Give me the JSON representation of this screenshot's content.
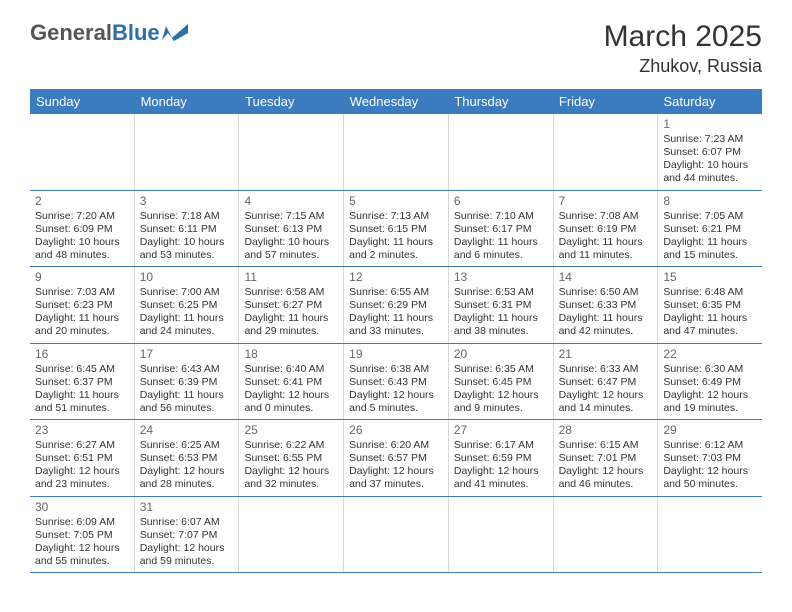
{
  "logo": {
    "textA": "General",
    "textB": "Blue"
  },
  "header": {
    "month_title": "March 2025",
    "location": "Zhukov, Russia"
  },
  "colors": {
    "header_bg": "#3a7cbf",
    "row_border": "#3a7cbf",
    "cell_border": "#d8d8d8",
    "text": "#333333",
    "background": "#ffffff"
  },
  "weekdays": [
    "Sunday",
    "Monday",
    "Tuesday",
    "Wednesday",
    "Thursday",
    "Friday",
    "Saturday"
  ],
  "weeks": [
    [
      null,
      null,
      null,
      null,
      null,
      null,
      {
        "n": "1",
        "sr": "Sunrise: 7:23 AM",
        "ss": "Sunset: 6:07 PM",
        "dl": "Daylight: 10 hours and 44 minutes."
      }
    ],
    [
      {
        "n": "2",
        "sr": "Sunrise: 7:20 AM",
        "ss": "Sunset: 6:09 PM",
        "dl": "Daylight: 10 hours and 48 minutes."
      },
      {
        "n": "3",
        "sr": "Sunrise: 7:18 AM",
        "ss": "Sunset: 6:11 PM",
        "dl": "Daylight: 10 hours and 53 minutes."
      },
      {
        "n": "4",
        "sr": "Sunrise: 7:15 AM",
        "ss": "Sunset: 6:13 PM",
        "dl": "Daylight: 10 hours and 57 minutes."
      },
      {
        "n": "5",
        "sr": "Sunrise: 7:13 AM",
        "ss": "Sunset: 6:15 PM",
        "dl": "Daylight: 11 hours and 2 minutes."
      },
      {
        "n": "6",
        "sr": "Sunrise: 7:10 AM",
        "ss": "Sunset: 6:17 PM",
        "dl": "Daylight: 11 hours and 6 minutes."
      },
      {
        "n": "7",
        "sr": "Sunrise: 7:08 AM",
        "ss": "Sunset: 6:19 PM",
        "dl": "Daylight: 11 hours and 11 minutes."
      },
      {
        "n": "8",
        "sr": "Sunrise: 7:05 AM",
        "ss": "Sunset: 6:21 PM",
        "dl": "Daylight: 11 hours and 15 minutes."
      }
    ],
    [
      {
        "n": "9",
        "sr": "Sunrise: 7:03 AM",
        "ss": "Sunset: 6:23 PM",
        "dl": "Daylight: 11 hours and 20 minutes."
      },
      {
        "n": "10",
        "sr": "Sunrise: 7:00 AM",
        "ss": "Sunset: 6:25 PM",
        "dl": "Daylight: 11 hours and 24 minutes."
      },
      {
        "n": "11",
        "sr": "Sunrise: 6:58 AM",
        "ss": "Sunset: 6:27 PM",
        "dl": "Daylight: 11 hours and 29 minutes."
      },
      {
        "n": "12",
        "sr": "Sunrise: 6:55 AM",
        "ss": "Sunset: 6:29 PM",
        "dl": "Daylight: 11 hours and 33 minutes."
      },
      {
        "n": "13",
        "sr": "Sunrise: 6:53 AM",
        "ss": "Sunset: 6:31 PM",
        "dl": "Daylight: 11 hours and 38 minutes."
      },
      {
        "n": "14",
        "sr": "Sunrise: 6:50 AM",
        "ss": "Sunset: 6:33 PM",
        "dl": "Daylight: 11 hours and 42 minutes."
      },
      {
        "n": "15",
        "sr": "Sunrise: 6:48 AM",
        "ss": "Sunset: 6:35 PM",
        "dl": "Daylight: 11 hours and 47 minutes."
      }
    ],
    [
      {
        "n": "16",
        "sr": "Sunrise: 6:45 AM",
        "ss": "Sunset: 6:37 PM",
        "dl": "Daylight: 11 hours and 51 minutes."
      },
      {
        "n": "17",
        "sr": "Sunrise: 6:43 AM",
        "ss": "Sunset: 6:39 PM",
        "dl": "Daylight: 11 hours and 56 minutes."
      },
      {
        "n": "18",
        "sr": "Sunrise: 6:40 AM",
        "ss": "Sunset: 6:41 PM",
        "dl": "Daylight: 12 hours and 0 minutes."
      },
      {
        "n": "19",
        "sr": "Sunrise: 6:38 AM",
        "ss": "Sunset: 6:43 PM",
        "dl": "Daylight: 12 hours and 5 minutes."
      },
      {
        "n": "20",
        "sr": "Sunrise: 6:35 AM",
        "ss": "Sunset: 6:45 PM",
        "dl": "Daylight: 12 hours and 9 minutes."
      },
      {
        "n": "21",
        "sr": "Sunrise: 6:33 AM",
        "ss": "Sunset: 6:47 PM",
        "dl": "Daylight: 12 hours and 14 minutes."
      },
      {
        "n": "22",
        "sr": "Sunrise: 6:30 AM",
        "ss": "Sunset: 6:49 PM",
        "dl": "Daylight: 12 hours and 19 minutes."
      }
    ],
    [
      {
        "n": "23",
        "sr": "Sunrise: 6:27 AM",
        "ss": "Sunset: 6:51 PM",
        "dl": "Daylight: 12 hours and 23 minutes."
      },
      {
        "n": "24",
        "sr": "Sunrise: 6:25 AM",
        "ss": "Sunset: 6:53 PM",
        "dl": "Daylight: 12 hours and 28 minutes."
      },
      {
        "n": "25",
        "sr": "Sunrise: 6:22 AM",
        "ss": "Sunset: 6:55 PM",
        "dl": "Daylight: 12 hours and 32 minutes."
      },
      {
        "n": "26",
        "sr": "Sunrise: 6:20 AM",
        "ss": "Sunset: 6:57 PM",
        "dl": "Daylight: 12 hours and 37 minutes."
      },
      {
        "n": "27",
        "sr": "Sunrise: 6:17 AM",
        "ss": "Sunset: 6:59 PM",
        "dl": "Daylight: 12 hours and 41 minutes."
      },
      {
        "n": "28",
        "sr": "Sunrise: 6:15 AM",
        "ss": "Sunset: 7:01 PM",
        "dl": "Daylight: 12 hours and 46 minutes."
      },
      {
        "n": "29",
        "sr": "Sunrise: 6:12 AM",
        "ss": "Sunset: 7:03 PM",
        "dl": "Daylight: 12 hours and 50 minutes."
      }
    ],
    [
      {
        "n": "30",
        "sr": "Sunrise: 6:09 AM",
        "ss": "Sunset: 7:05 PM",
        "dl": "Daylight: 12 hours and 55 minutes."
      },
      {
        "n": "31",
        "sr": "Sunrise: 6:07 AM",
        "ss": "Sunset: 7:07 PM",
        "dl": "Daylight: 12 hours and 59 minutes."
      },
      null,
      null,
      null,
      null,
      null
    ]
  ]
}
